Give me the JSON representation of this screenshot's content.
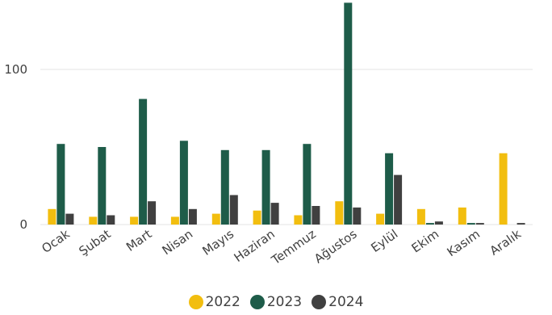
{
  "chart_data": {
    "type": "bar",
    "categories": [
      "Ocak",
      "Şubat",
      "Mart",
      "Nisan",
      "Mayıs",
      "Haziran",
      "Temmuz",
      "Ağustos",
      "Eylül",
      "Ekim",
      "Kasım",
      "Aralık"
    ],
    "series": [
      {
        "name": "2022",
        "color": "#F2BE0F",
        "values": [
          10,
          5,
          5,
          5,
          7,
          9,
          6,
          15,
          7,
          10,
          11,
          46
        ]
      },
      {
        "name": "2023",
        "color": "#1E5C49",
        "values": [
          52,
          50,
          81,
          54,
          48,
          48,
          52,
          143,
          46,
          1,
          1,
          0
        ]
      },
      {
        "name": "2024",
        "color": "#404040",
        "values": [
          7,
          6,
          15,
          10,
          19,
          14,
          12,
          11,
          32,
          2,
          1,
          1
        ]
      }
    ],
    "yticks": [
      "0",
      "100"
    ],
    "ylim": [
      0,
      143
    ],
    "grid": true,
    "legend_position": "bottom"
  }
}
